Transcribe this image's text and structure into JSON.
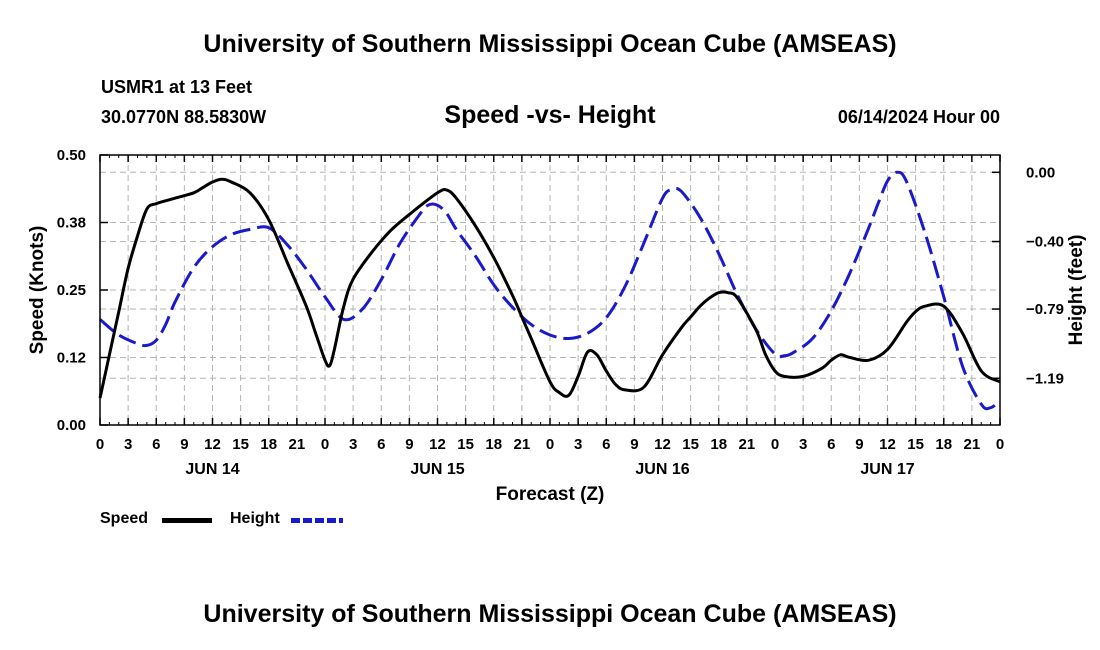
{
  "page": {
    "title": "University of Southern Mississippi Ocean Cube (AMSEAS)",
    "footer_title": "University of Southern Mississippi Ocean Cube (AMSEAS)",
    "station": "USMR1 at 13 Feet",
    "coords": "30.0770N  88.5830W",
    "datetime": "06/14/2024 Hour 00"
  },
  "legend": {
    "speed_label": "Speed",
    "height_label": "Height"
  },
  "colors": {
    "speed": "#000000",
    "height": "#1a1acd",
    "grid": "#b4b4b4"
  },
  "chart_data": {
    "type": "line",
    "title": "Speed -vs- Height",
    "xlabel": "Forecast (Z)",
    "ylabel": "Speed (Knots)",
    "y2label": "Height (feet)",
    "xlim": [
      0,
      96
    ],
    "ylim": [
      0,
      0.5
    ],
    "y2lim": [
      -1.46,
      0.1
    ],
    "yticks": [
      {
        "value": 0.0,
        "label": "0.00"
      },
      {
        "value": 0.125,
        "label": "0.12"
      },
      {
        "value": 0.25,
        "label": "0.25"
      },
      {
        "value": 0.375,
        "label": "0.38"
      },
      {
        "value": 0.5,
        "label": "0.50"
      }
    ],
    "y2ticks": [
      {
        "value": 0.0,
        "label": "0.00"
      },
      {
        "value": -0.4,
        "label": "−0.40"
      },
      {
        "value": -0.79,
        "label": "−0.79"
      },
      {
        "value": -1.19,
        "label": "−1.19"
      }
    ],
    "xticks": [
      {
        "value": 0,
        "label": "0"
      },
      {
        "value": 3,
        "label": "3"
      },
      {
        "value": 6,
        "label": "6"
      },
      {
        "value": 9,
        "label": "9"
      },
      {
        "value": 12,
        "label": "12"
      },
      {
        "value": 15,
        "label": "15"
      },
      {
        "value": 18,
        "label": "18"
      },
      {
        "value": 21,
        "label": "21"
      },
      {
        "value": 24,
        "label": "0"
      },
      {
        "value": 27,
        "label": "3"
      },
      {
        "value": 30,
        "label": "6"
      },
      {
        "value": 33,
        "label": "9"
      },
      {
        "value": 36,
        "label": "12"
      },
      {
        "value": 39,
        "label": "15"
      },
      {
        "value": 42,
        "label": "18"
      },
      {
        "value": 45,
        "label": "21"
      },
      {
        "value": 48,
        "label": "0"
      },
      {
        "value": 51,
        "label": "3"
      },
      {
        "value": 54,
        "label": "6"
      },
      {
        "value": 57,
        "label": "9"
      },
      {
        "value": 60,
        "label": "12"
      },
      {
        "value": 63,
        "label": "15"
      },
      {
        "value": 66,
        "label": "18"
      },
      {
        "value": 69,
        "label": "21"
      },
      {
        "value": 72,
        "label": "0"
      },
      {
        "value": 75,
        "label": "3"
      },
      {
        "value": 78,
        "label": "6"
      },
      {
        "value": 81,
        "label": "9"
      },
      {
        "value": 84,
        "label": "12"
      },
      {
        "value": 87,
        "label": "15"
      },
      {
        "value": 90,
        "label": "18"
      },
      {
        "value": 93,
        "label": "21"
      },
      {
        "value": 96,
        "label": "0"
      }
    ],
    "day_labels": [
      {
        "value": 12,
        "label": "JUN 14"
      },
      {
        "value": 36,
        "label": "JUN 15"
      },
      {
        "value": 60,
        "label": "JUN 16"
      },
      {
        "value": 84,
        "label": "JUN 17"
      }
    ],
    "series": [
      {
        "name": "Speed",
        "axis": "left",
        "style": "solid",
        "x": [
          0,
          1,
          2,
          3,
          4,
          5,
          6,
          8,
          10,
          11,
          12,
          13,
          14,
          16,
          18,
          20,
          22,
          23,
          24,
          24.5,
          25,
          26,
          27,
          29,
          31,
          33,
          36,
          37,
          38,
          40,
          42,
          44,
          45,
          46,
          48,
          49,
          50,
          51,
          52,
          53,
          54,
          55,
          56,
          58,
          60,
          62,
          63,
          64,
          65,
          66,
          67,
          68,
          70,
          71,
          72,
          73,
          75,
          77,
          78,
          79,
          80,
          82,
          84,
          86,
          87,
          88,
          90,
          92,
          94,
          96
        ],
        "y": [
          0.05,
          0.13,
          0.21,
          0.29,
          0.35,
          0.4,
          0.41,
          0.42,
          0.43,
          0.44,
          0.45,
          0.455,
          0.45,
          0.43,
          0.38,
          0.3,
          0.22,
          0.17,
          0.12,
          0.11,
          0.14,
          0.22,
          0.27,
          0.32,
          0.36,
          0.39,
          0.43,
          0.435,
          0.42,
          0.37,
          0.31,
          0.24,
          0.2,
          0.16,
          0.08,
          0.06,
          0.055,
          0.09,
          0.135,
          0.13,
          0.1,
          0.075,
          0.065,
          0.07,
          0.13,
          0.18,
          0.2,
          0.22,
          0.235,
          0.245,
          0.245,
          0.235,
          0.175,
          0.13,
          0.1,
          0.09,
          0.09,
          0.105,
          0.12,
          0.13,
          0.125,
          0.12,
          0.14,
          0.19,
          0.21,
          0.22,
          0.22,
          0.17,
          0.1,
          0.08
        ]
      },
      {
        "name": "Height",
        "axis": "right",
        "style": "dashed",
        "x": [
          0,
          2,
          4,
          5,
          6,
          7,
          8,
          10,
          12,
          14,
          16,
          18,
          20,
          22,
          24,
          26,
          28,
          30,
          32,
          34,
          35,
          36,
          37,
          38,
          40,
          42,
          44,
          46,
          48,
          50,
          52,
          54,
          56,
          58,
          60,
          61,
          62,
          64,
          66,
          68,
          70,
          72,
          73,
          74,
          76,
          78,
          80,
          82,
          83,
          84,
          85,
          86,
          88,
          90,
          92,
          94,
          95,
          96
        ],
        "y": [
          -0.85,
          -0.94,
          -0.99,
          -1.0,
          -0.97,
          -0.88,
          -0.75,
          -0.55,
          -0.43,
          -0.36,
          -0.33,
          -0.32,
          -0.42,
          -0.56,
          -0.72,
          -0.85,
          -0.79,
          -0.62,
          -0.41,
          -0.25,
          -0.19,
          -0.19,
          -0.24,
          -0.33,
          -0.48,
          -0.65,
          -0.78,
          -0.88,
          -0.94,
          -0.96,
          -0.93,
          -0.84,
          -0.66,
          -0.41,
          -0.15,
          -0.1,
          -0.11,
          -0.26,
          -0.47,
          -0.71,
          -0.91,
          -1.05,
          -1.06,
          -1.04,
          -0.96,
          -0.8,
          -0.58,
          -0.32,
          -0.18,
          -0.05,
          0.0,
          -0.05,
          -0.35,
          -0.72,
          -1.12,
          -1.34,
          -1.36,
          -1.32
        ]
      }
    ]
  }
}
